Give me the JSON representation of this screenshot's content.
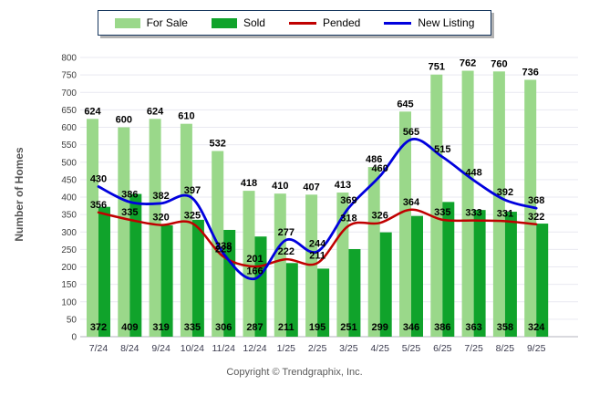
{
  "legend": {
    "items": [
      {
        "label": "For Sale",
        "type": "bar",
        "color": "#9AD88A"
      },
      {
        "label": "Sold",
        "type": "bar",
        "color": "#10A32B"
      },
      {
        "label": "Pended",
        "type": "line",
        "color": "#C00000"
      },
      {
        "label": "New Listing",
        "type": "line",
        "color": "#0000DD"
      }
    ]
  },
  "axis": {
    "y_title": "Number of Homes"
  },
  "footer": {
    "copyright": "Copyright © Trendgraphix, Inc."
  },
  "chart_data": {
    "type": "bar",
    "subtype": "grouped bars with overlaid smoothed lines",
    "categories": [
      "7/24",
      "8/24",
      "9/24",
      "10/24",
      "11/24",
      "12/24",
      "1/25",
      "2/25",
      "3/25",
      "4/25",
      "5/25",
      "6/25",
      "7/25",
      "8/25",
      "9/25"
    ],
    "series": [
      {
        "name": "For Sale",
        "type": "bar",
        "color": "#9AD88A",
        "values": [
          624,
          600,
          624,
          610,
          532,
          418,
          410,
          407,
          413,
          486,
          645,
          751,
          762,
          760,
          736
        ]
      },
      {
        "name": "Sold",
        "type": "bar",
        "color": "#10A32B",
        "values": [
          372,
          409,
          319,
          335,
          306,
          287,
          211,
          195,
          251,
          299,
          346,
          386,
          363,
          358,
          324
        ]
      },
      {
        "name": "Pended",
        "type": "line",
        "color": "#C00000",
        "values": [
          356,
          335,
          320,
          325,
          229,
          201,
          222,
          211,
          318,
          326,
          364,
          335,
          333,
          331,
          322
        ]
      },
      {
        "name": "New Listing",
        "type": "line",
        "color": "#0000DD",
        "values": [
          430,
          386,
          382,
          397,
          238,
          166,
          277,
          244,
          369,
          460,
          565,
          515,
          448,
          392,
          368
        ]
      }
    ],
    "title": "",
    "xlabel": "",
    "ylabel": "Number of Homes",
    "ylim": [
      0,
      800
    ],
    "ytick_step": 50,
    "grid": true,
    "legend_position": "top",
    "value_labels": true,
    "colors": {
      "grid": "#E9E9F1",
      "axis_line": "#B3B3BD",
      "tick_text": "#404040",
      "x_tick_text": "#3A3A4D",
      "value_label_text": "#000000"
    }
  }
}
